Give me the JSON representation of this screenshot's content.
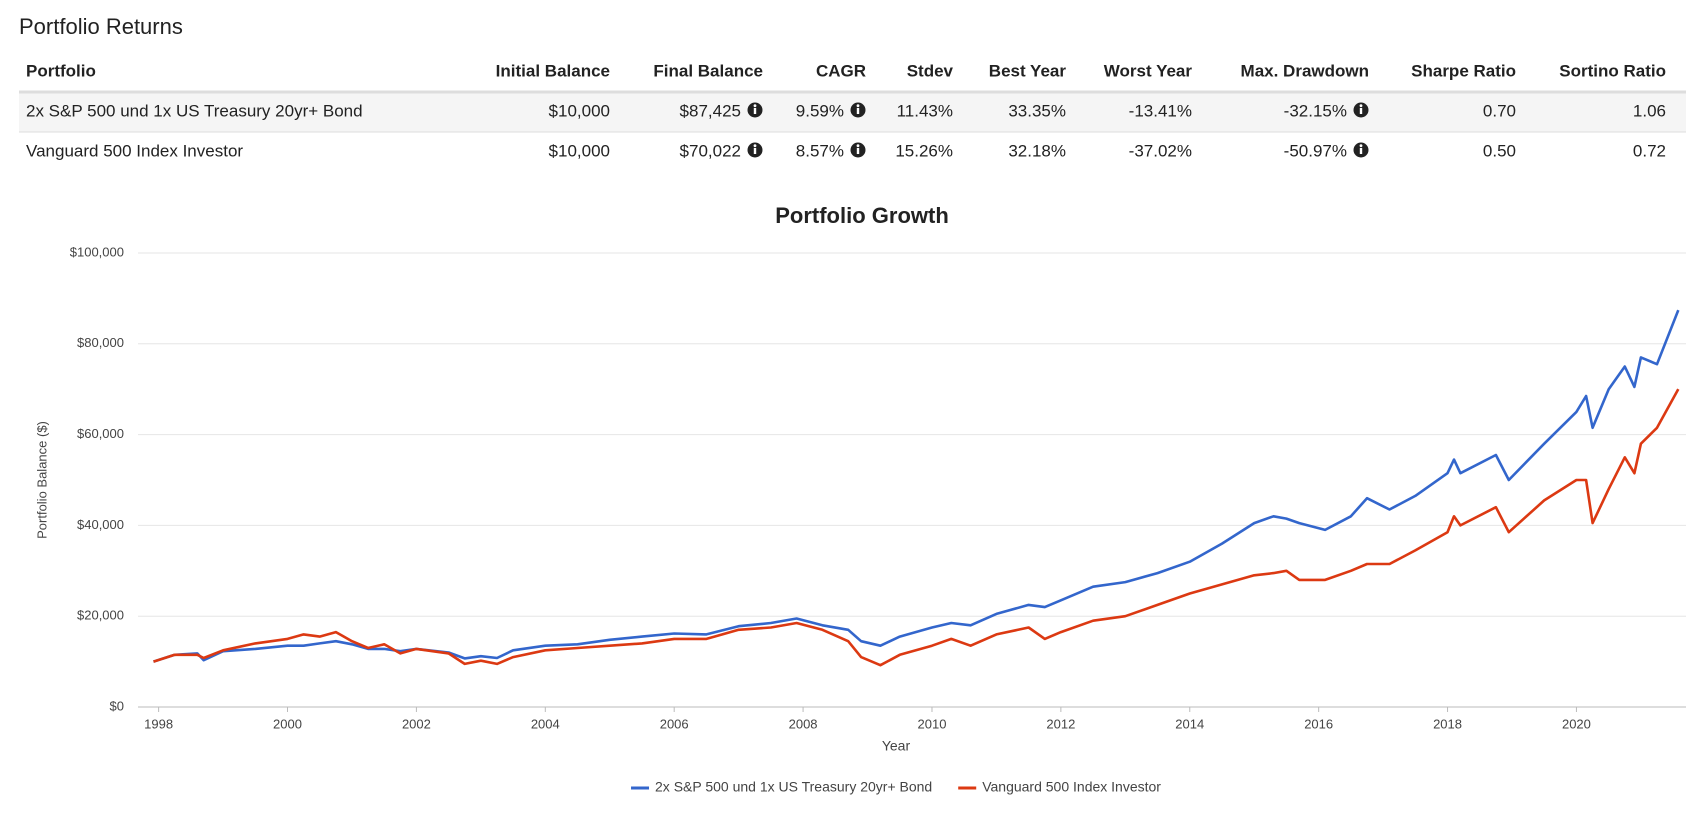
{
  "table": {
    "title": "Portfolio Returns",
    "columns": [
      "Portfolio",
      "Initial Balance",
      "Final Balance",
      "CAGR",
      "Stdev",
      "Best Year",
      "Worst Year",
      "Max. Drawdown",
      "Sharpe Ratio",
      "Sortino Ratio"
    ],
    "rows": [
      [
        "2x S&P 500 und 1x US Treasury 20yr+ Bond",
        "$10,000",
        "$87,425",
        "9.59%",
        "11.43%",
        "33.35%",
        "-13.41%",
        "-32.15%",
        "0.70",
        "1.06"
      ],
      [
        "Vanguard 500 Index Investor",
        "$10,000",
        "$70,022",
        "8.57%",
        "15.26%",
        "32.18%",
        "-37.02%",
        "-50.97%",
        "0.50",
        "0.72"
      ]
    ]
  },
  "chart_data": {
    "type": "line",
    "title": "Portfolio Growth",
    "x_label": "Year",
    "y_label": "Portfolio Balance ($)",
    "x": [
      1997.92,
      1998.25,
      1998.6,
      1998.7,
      1999.0,
      1999.5,
      2000.0,
      2000.25,
      2000.5,
      2000.75,
      2001.0,
      2001.25,
      2001.5,
      2001.75,
      2002.0,
      2002.5,
      2002.75,
      2003.0,
      2003.25,
      2003.5,
      2004.0,
      2004.5,
      2005.0,
      2005.5,
      2006.0,
      2006.5,
      2007.0,
      2007.5,
      2007.9,
      2008.3,
      2008.7,
      2008.9,
      2009.2,
      2009.5,
      2010.0,
      2010.3,
      2010.6,
      2011.0,
      2011.5,
      2011.75,
      2012.0,
      2012.5,
      2013.0,
      2013.5,
      2014.0,
      2014.5,
      2015.0,
      2015.3,
      2015.5,
      2015.7,
      2016.1,
      2016.5,
      2016.75,
      2017.1,
      2017.5,
      2018.0,
      2018.1,
      2018.2,
      2018.75,
      2018.95,
      2019.5,
      2020.0,
      2020.15,
      2020.25,
      2020.5,
      2020.75,
      2020.9,
      2021.0,
      2021.25,
      2021.58
    ],
    "series": [
      {
        "name": "2x S&P 500 und 1x US Treasury 20yr+ Bond",
        "color": "#3366cc",
        "values": [
          10000,
          11500,
          11800,
          10300,
          12300,
          12800,
          13500,
          13500,
          14000,
          14500,
          13800,
          12800,
          12800,
          12300,
          12800,
          12000,
          10700,
          11200,
          10800,
          12500,
          13500,
          13800,
          14800,
          15500,
          16200,
          16000,
          17800,
          18500,
          19500,
          18000,
          17000,
          14500,
          13500,
          15500,
          17500,
          18500,
          18000,
          20500,
          22500,
          22000,
          23500,
          26500,
          27500,
          29500,
          32000,
          36000,
          40500,
          42000,
          41500,
          40500,
          39000,
          42000,
          46000,
          43500,
          46500,
          51500,
          54500,
          51500,
          55500,
          50000,
          58000,
          65000,
          68500,
          61500,
          70000,
          75000,
          70500,
          77000,
          75500,
          87425
        ]
      },
      {
        "name": "Vanguard 500 Index Investor",
        "color": "#dc3912",
        "values": [
          10000,
          11500,
          11500,
          10800,
          12500,
          14000,
          15000,
          16000,
          15500,
          16500,
          14500,
          13000,
          13800,
          11800,
          12800,
          11800,
          9500,
          10200,
          9500,
          11000,
          12500,
          13000,
          13500,
          14000,
          15000,
          15000,
          17000,
          17500,
          18500,
          17000,
          14500,
          11000,
          9200,
          11500,
          13500,
          15000,
          13500,
          16000,
          17500,
          15000,
          16500,
          19000,
          20000,
          22500,
          25000,
          27000,
          29000,
          29500,
          30000,
          28000,
          28000,
          30000,
          31500,
          31500,
          34500,
          38500,
          42000,
          40000,
          44000,
          38500,
          45500,
          50000,
          50000,
          40500,
          48000,
          55000,
          51500,
          58000,
          61500,
          70022
        ]
      }
    ],
    "xlim": [
      1997.68,
      2021.7
    ],
    "xticks": [
      1998,
      2000,
      2002,
      2004,
      2006,
      2008,
      2010,
      2012,
      2014,
      2016,
      2018,
      2020
    ],
    "ylim": [
      0,
      100000
    ],
    "yticks": [
      {
        "value": 0,
        "label": "$0"
      },
      {
        "value": 20000,
        "label": "$20,000"
      },
      {
        "value": 40000,
        "label": "$40,000"
      },
      {
        "value": 60000,
        "label": "$60,000"
      },
      {
        "value": 80000,
        "label": "$80,000"
      },
      {
        "value": 100000,
        "label": "$100,000"
      }
    ],
    "grid": true,
    "legend": "bottom"
  }
}
